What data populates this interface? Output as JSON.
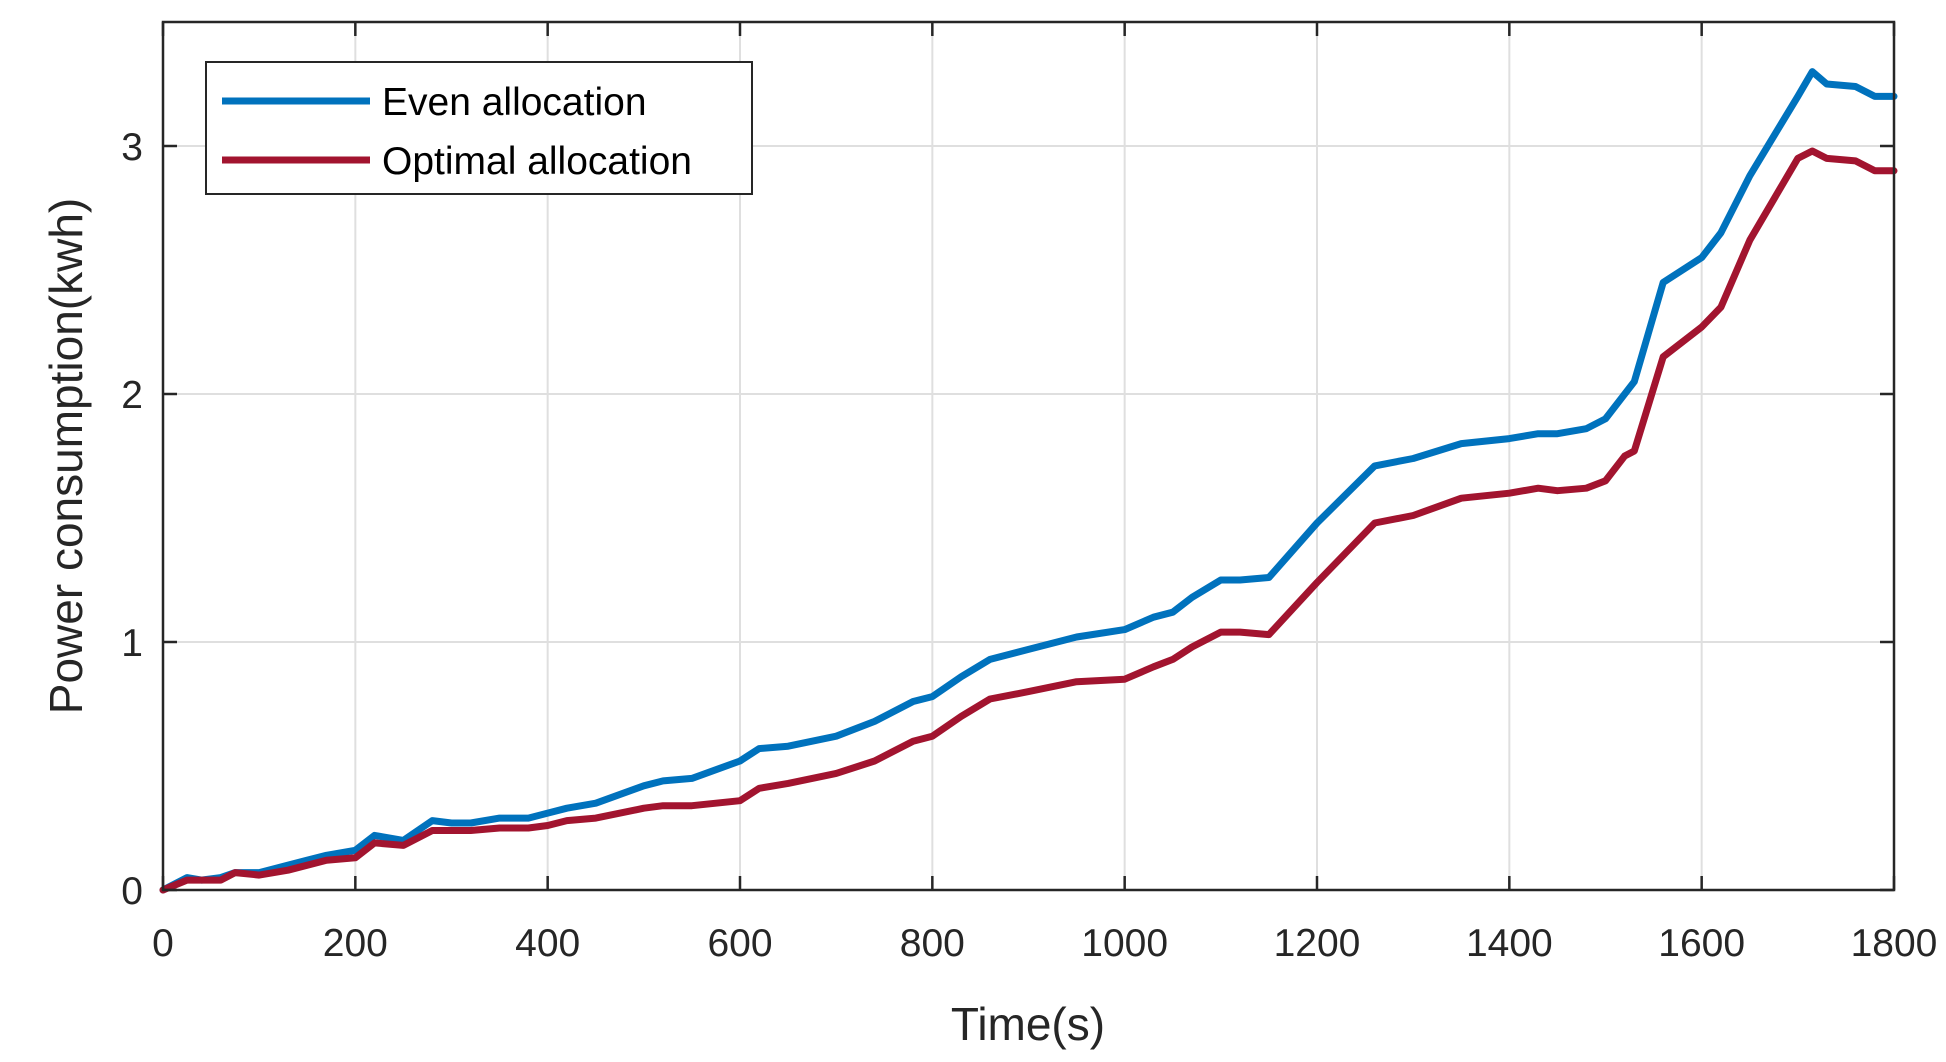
{
  "chart_data": {
    "type": "line",
    "title": "",
    "xlabel": "Time(s)",
    "ylabel": "Power consumption(kwh)",
    "xlim": [
      0,
      1800
    ],
    "ylim": [
      0,
      3.5
    ],
    "xticks": [
      0,
      200,
      400,
      600,
      800,
      1000,
      1200,
      1400,
      1600,
      1800
    ],
    "yticks": [
      0,
      1,
      2,
      3
    ],
    "xtick_labels": [
      "0",
      "200",
      "400",
      "600",
      "800",
      "1000",
      "1200",
      "1400",
      "1600",
      "1800"
    ],
    "ytick_labels": [
      "0",
      "1",
      "2",
      "3"
    ],
    "grid": true,
    "legend_position": "top-left",
    "series": [
      {
        "name": "Even allocation",
        "color": "#0072BD",
        "x": [
          0,
          25,
          40,
          60,
          75,
          100,
          130,
          150,
          170,
          200,
          220,
          250,
          280,
          300,
          320,
          350,
          380,
          400,
          420,
          450,
          500,
          520,
          550,
          600,
          620,
          650,
          700,
          740,
          780,
          800,
          830,
          860,
          900,
          950,
          1000,
          1030,
          1050,
          1070,
          1100,
          1120,
          1150,
          1200,
          1260,
          1300,
          1350,
          1400,
          1430,
          1450,
          1480,
          1500,
          1520,
          1530,
          1560,
          1600,
          1620,
          1650,
          1700,
          1715,
          1730,
          1760,
          1780,
          1800
        ],
        "values": [
          0,
          0.05,
          0.04,
          0.05,
          0.07,
          0.07,
          0.1,
          0.12,
          0.14,
          0.16,
          0.22,
          0.2,
          0.28,
          0.27,
          0.27,
          0.29,
          0.29,
          0.31,
          0.33,
          0.35,
          0.42,
          0.44,
          0.45,
          0.52,
          0.57,
          0.58,
          0.62,
          0.68,
          0.76,
          0.78,
          0.86,
          0.93,
          0.97,
          1.02,
          1.05,
          1.1,
          1.12,
          1.18,
          1.25,
          1.25,
          1.26,
          1.48,
          1.71,
          1.74,
          1.8,
          1.82,
          1.84,
          1.84,
          1.86,
          1.9,
          2.0,
          2.05,
          2.45,
          2.55,
          2.65,
          2.88,
          3.2,
          3.3,
          3.25,
          3.24,
          3.2,
          3.2
        ]
      },
      {
        "name": "Optimal allocation",
        "color": "#A2142F",
        "x": [
          0,
          25,
          40,
          60,
          75,
          100,
          130,
          150,
          170,
          200,
          220,
          250,
          280,
          300,
          320,
          350,
          380,
          400,
          420,
          450,
          500,
          520,
          550,
          600,
          620,
          650,
          700,
          740,
          780,
          800,
          830,
          860,
          900,
          950,
          1000,
          1030,
          1050,
          1070,
          1100,
          1120,
          1150,
          1200,
          1260,
          1300,
          1350,
          1400,
          1430,
          1450,
          1480,
          1500,
          1520,
          1530,
          1560,
          1600,
          1620,
          1650,
          1700,
          1715,
          1730,
          1760,
          1780,
          1800
        ],
        "values": [
          0,
          0.04,
          0.04,
          0.04,
          0.07,
          0.06,
          0.08,
          0.1,
          0.12,
          0.13,
          0.19,
          0.18,
          0.24,
          0.24,
          0.24,
          0.25,
          0.25,
          0.26,
          0.28,
          0.29,
          0.33,
          0.34,
          0.34,
          0.36,
          0.41,
          0.43,
          0.47,
          0.52,
          0.6,
          0.62,
          0.7,
          0.77,
          0.8,
          0.84,
          0.85,
          0.9,
          0.93,
          0.98,
          1.04,
          1.04,
          1.03,
          1.24,
          1.48,
          1.51,
          1.58,
          1.6,
          1.62,
          1.61,
          1.62,
          1.65,
          1.75,
          1.77,
          2.15,
          2.27,
          2.35,
          2.62,
          2.95,
          2.98,
          2.95,
          2.94,
          2.9,
          2.9
        ]
      }
    ]
  }
}
